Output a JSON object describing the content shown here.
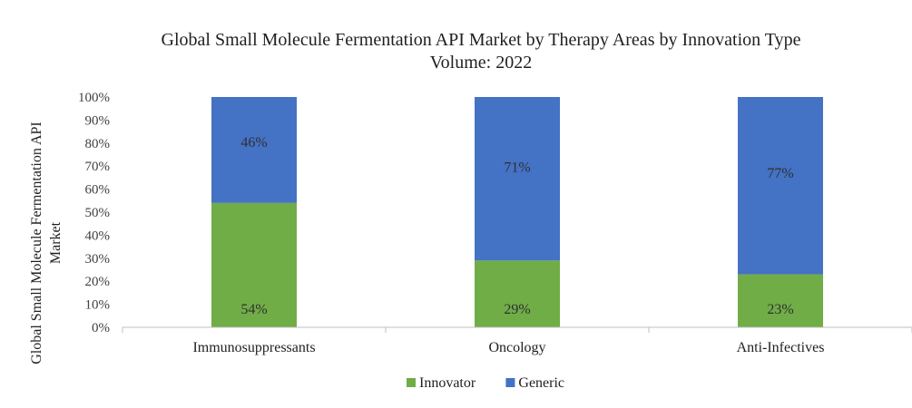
{
  "chart_data": {
    "type": "bar",
    "stacked": true,
    "percent": true,
    "title": "Global Small Molecule Fermentation API Market by Therapy Areas by Innovation Type",
    "subtitle": "Volume: 2022",
    "ylabel_line1": "Global Small Molecule Fermentation API",
    "ylabel_line2": "Market",
    "categories": [
      "Immunosuppressants",
      "Oncology",
      "Anti-Infectives"
    ],
    "series": [
      {
        "name": "Innovator",
        "color": "#70ad47",
        "values": [
          54,
          29,
          23
        ],
        "labels": [
          "54%",
          "29%",
          "23%"
        ]
      },
      {
        "name": "Generic",
        "color": "#4472c4",
        "values": [
          46,
          71,
          77
        ],
        "labels": [
          "46%",
          "71%",
          "77%"
        ]
      }
    ],
    "ylim": [
      0,
      100
    ],
    "yticks": [
      "0%",
      "10%",
      "20%",
      "30%",
      "40%",
      "50%",
      "60%",
      "70%",
      "80%",
      "90%",
      "100%"
    ],
    "legend_position": "bottom",
    "grid": false
  }
}
